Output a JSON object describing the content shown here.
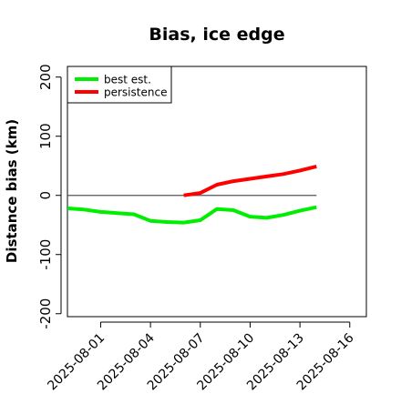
{
  "chart_data": {
    "type": "line",
    "title": "Bias, ice edge",
    "xlabel": "",
    "ylabel": "Distance bias (km)",
    "xlim": [
      "2025-07-30",
      "2025-08-17"
    ],
    "ylim": [
      -205,
      218
    ],
    "x_ticks": [
      "2025-08-01",
      "2025-08-04",
      "2025-08-07",
      "2025-08-10",
      "2025-08-13",
      "2025-08-16"
    ],
    "y_ticks": [
      -200,
      -100,
      0,
      100,
      200
    ],
    "grid": false,
    "legend_position": "top-left",
    "reference_line": {
      "y": 0,
      "from": "2025-07-30",
      "to": "2025-08-14",
      "color": "#555555"
    },
    "series": [
      {
        "name": "best est.",
        "color": "#00ee00",
        "points": [
          [
            "2025-07-30",
            -22
          ],
          [
            "2025-07-31",
            -24
          ],
          [
            "2025-08-01",
            -28
          ],
          [
            "2025-08-02",
            -30
          ],
          [
            "2025-08-03",
            -32
          ],
          [
            "2025-08-04",
            -43
          ],
          [
            "2025-08-05",
            -45
          ],
          [
            "2025-08-06",
            -46
          ],
          [
            "2025-08-07",
            -42
          ],
          [
            "2025-08-08",
            -23
          ],
          [
            "2025-08-09",
            -25
          ],
          [
            "2025-08-10",
            -36
          ],
          [
            "2025-08-11",
            -38
          ],
          [
            "2025-08-12",
            -33
          ],
          [
            "2025-08-13",
            -26
          ],
          [
            "2025-08-14",
            -20
          ]
        ]
      },
      {
        "name": "persistence",
        "color": "#ff0000",
        "points": [
          [
            "2025-08-06",
            0
          ],
          [
            "2025-08-07",
            4
          ],
          [
            "2025-08-08",
            18
          ],
          [
            "2025-08-09",
            24
          ],
          [
            "2025-08-10",
            28
          ],
          [
            "2025-08-11",
            32
          ],
          [
            "2025-08-12",
            36
          ],
          [
            "2025-08-13",
            42
          ],
          [
            "2025-08-14",
            49
          ]
        ]
      }
    ]
  }
}
